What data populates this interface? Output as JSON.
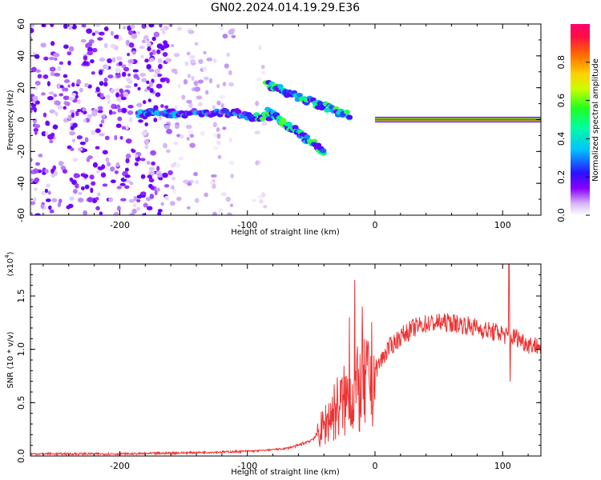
{
  "title": "GN02.2024.014.19.29.E36",
  "chart_data": [
    {
      "type": "heatmap",
      "xlabel": "Height of straight line (km)",
      "ylabel": "Frequency (Hz)",
      "xlim": [
        -270,
        130
      ],
      "ylim": [
        -60,
        60
      ],
      "x_ticks": [
        -200,
        -100,
        0,
        100
      ],
      "y_ticks": [
        -60,
        -40,
        -20,
        0,
        20,
        40,
        60
      ],
      "x_tick_labels": [
        "-200",
        "-100",
        "0",
        "100"
      ],
      "y_tick_labels": [
        "-60",
        "-40",
        "-20",
        "0",
        "20",
        "40",
        "60"
      ],
      "colorbar": {
        "label": "Normalized spectral amplitude",
        "range": [
          0,
          1
        ],
        "ticks": [
          0.0,
          0.2,
          0.4,
          0.6,
          0.8
        ],
        "tick_labels": [
          "0.0",
          "0.2",
          "0.4",
          "0.6",
          "0.8"
        ],
        "colormap": [
          "#ffffff",
          "#c9a2f5",
          "#7b00ff",
          "#3a10ff",
          "#00c8ff",
          "#00ff7a",
          "#7aff00",
          "#ffff00",
          "#ff8000",
          "#ff0060"
        ]
      },
      "features": [
        {
          "name": "noise",
          "x_range": [
            -270,
            -160
          ],
          "f_range": [
            -60,
            60
          ],
          "amplitude": 0.25
        },
        {
          "name": "noise",
          "x_range": [
            -160,
            -110
          ],
          "f_range": [
            -60,
            60
          ],
          "amplitude": 0.12
        },
        {
          "name": "noise",
          "x_range": [
            -95,
            -85
          ],
          "f_range": [
            -60,
            60
          ],
          "amplitude": 0.08
        },
        {
          "name": "ridge",
          "x_range": [
            -185,
            -100
          ],
          "f_range": [
            2,
            6
          ],
          "amplitude": 0.35
        },
        {
          "name": "ridge",
          "x_range": [
            -100,
            -80
          ],
          "f_range": [
            0,
            4
          ],
          "amplitude": 0.45
        },
        {
          "name": "upper branch",
          "x_start": -85,
          "f_start": 22,
          "x_end": -20,
          "f_end": 2,
          "amplitude": 0.45
        },
        {
          "name": "lower branch",
          "x_start": -85,
          "f_start": 6,
          "x_end": -40,
          "f_end": -20,
          "amplitude": 0.45
        },
        {
          "name": "converged line",
          "x_range": [
            0,
            130
          ],
          "f": 0,
          "amplitude": 0.95
        }
      ]
    },
    {
      "type": "line",
      "xlabel": "Height of straight line (km)",
      "ylabel": "SNR (10 * v/v)",
      "multiplier_label": "(x10",
      "multiplier_exp": "4",
      "multiplier_close": ")",
      "xlim": [
        -270,
        130
      ],
      "ylim": [
        0,
        1.8
      ],
      "x_ticks": [
        -200,
        -100,
        0,
        100
      ],
      "y_ticks": [
        0.0,
        0.5,
        1.0,
        1.5
      ],
      "x_tick_labels": [
        "-200",
        "-100",
        "0",
        "100"
      ],
      "y_tick_labels": [
        "0.0",
        "0.5",
        "1.0",
        "1.5"
      ],
      "color": "#ee3333",
      "x": [
        -270,
        -250,
        -230,
        -210,
        -190,
        -170,
        -150,
        -130,
        -110,
        -90,
        -70,
        -60,
        -50,
        -45,
        -40,
        -35,
        -30,
        -25,
        -20,
        -15,
        -10,
        -5,
        0,
        5,
        10,
        20,
        30,
        40,
        50,
        60,
        70,
        80,
        90,
        100,
        105,
        110,
        120,
        130
      ],
      "values": [
        0.02,
        0.02,
        0.02,
        0.02,
        0.02,
        0.025,
        0.03,
        0.035,
        0.04,
        0.05,
        0.07,
        0.1,
        0.15,
        0.2,
        0.28,
        0.38,
        0.45,
        0.5,
        0.55,
        0.6,
        0.62,
        0.7,
        0.8,
        0.9,
        1.0,
        1.12,
        1.2,
        1.24,
        1.25,
        1.25,
        1.23,
        1.2,
        1.17,
        1.15,
        1.1,
        1.12,
        1.05,
        1.03
      ],
      "spikes": [
        {
          "x": -16,
          "value": 1.65
        },
        {
          "x": -10,
          "value": 1.4
        },
        {
          "x": -20,
          "value": 1.3
        },
        {
          "x": 105,
          "value": 1.82
        },
        {
          "x": 106,
          "value": 0.7
        }
      ]
    }
  ]
}
